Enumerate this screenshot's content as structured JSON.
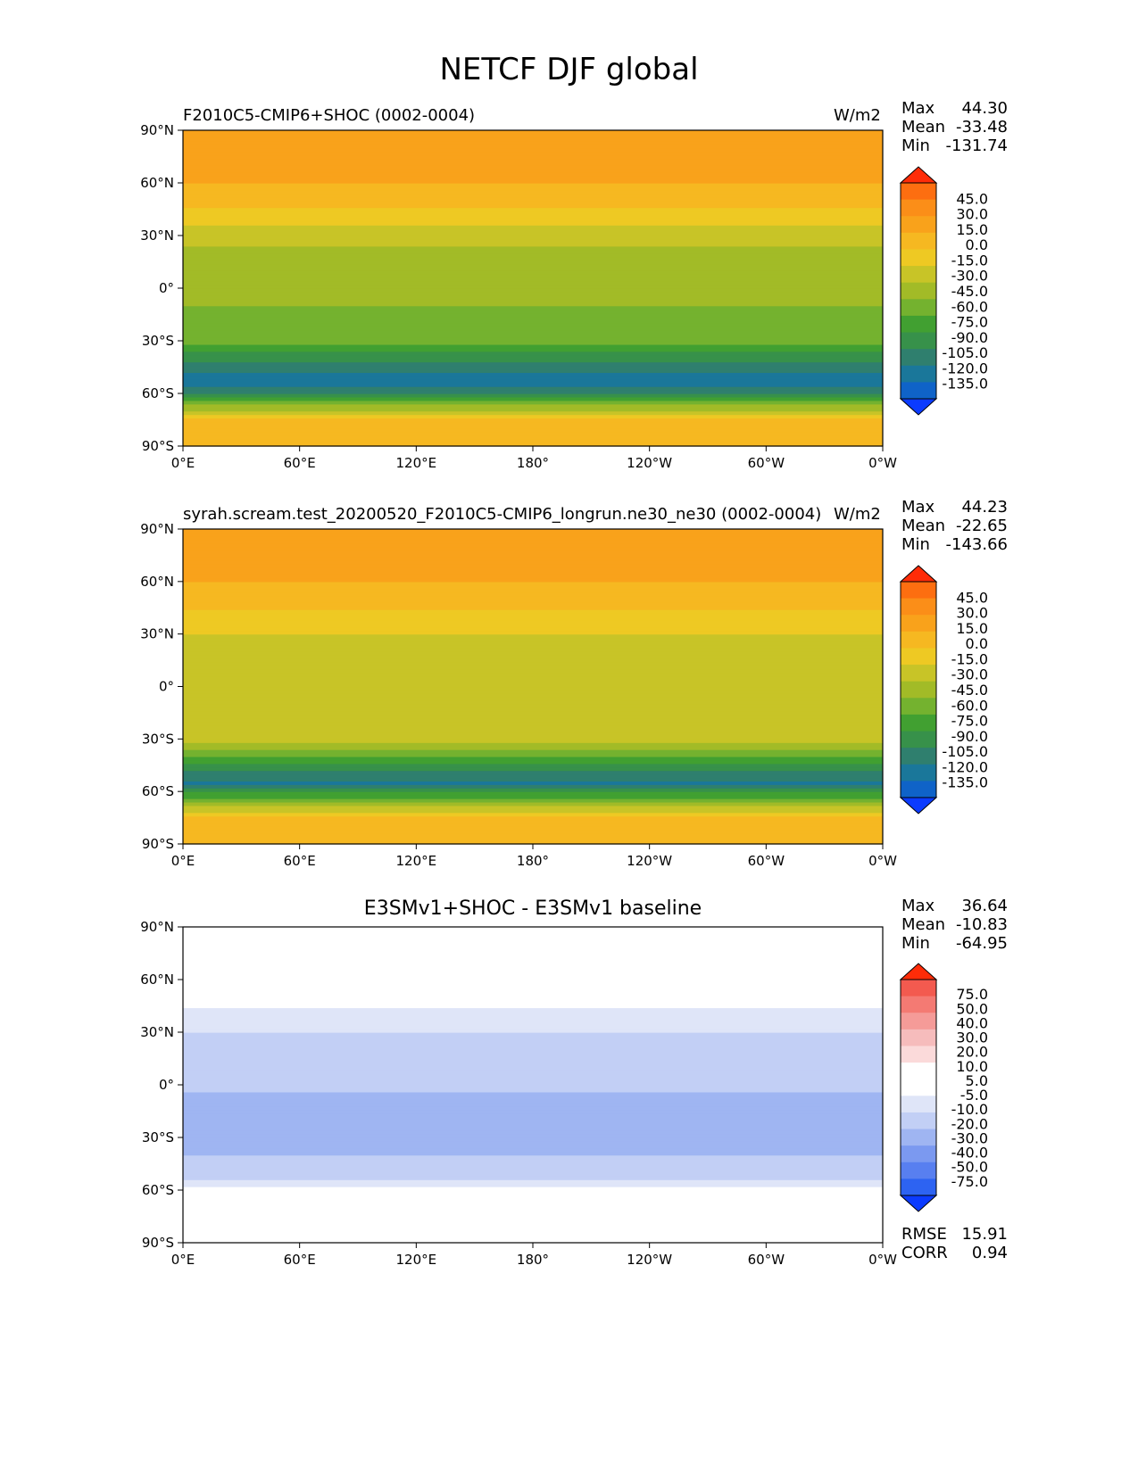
{
  "figure_title": "NETCF DJF global",
  "colors": {
    "diverging": [
      "#0b3bff",
      "#2d63f2",
      "#587ff0",
      "#7b99f0",
      "#9fb5f2",
      "#c2cff5",
      "#dfe5f8",
      "#ffffff",
      "#ffffff",
      "#fbdada",
      "#f6bcbc",
      "#f59b98",
      "#f47a73",
      "#f35a4f",
      "#ff2c08"
    ],
    "sequential": [
      "#0b3bff",
      "#0f63c8",
      "#1a779a",
      "#2f7f6e",
      "#37914a",
      "#41a031",
      "#74b22f",
      "#a2bb27",
      "#c8c427",
      "#eec923",
      "#f6b821",
      "#f9a21b",
      "#fb8e18",
      "#fd6e10",
      "#ff2c08"
    ]
  },
  "chart_data": [
    {
      "type": "heatmap",
      "title": "F2010C5-CMIP6+SHOC (0002-0004)",
      "units": "W/m2",
      "stats": {
        "max": "44.30",
        "mean": "-33.48",
        "min": "-131.74"
      },
      "colorbar_levels": [
        "45.0",
        "30.0",
        "15.0",
        "0.0",
        "-15.0",
        "-30.0",
        "-45.0",
        "-60.0",
        "-75.0",
        "-90.0",
        "-105.0",
        "-120.0",
        "-135.0"
      ],
      "zonal_mean_profile": [
        {
          "lat": -90,
          "value": 10
        },
        {
          "lat": -75,
          "value": 0
        },
        {
          "lat": -66,
          "value": -50
        },
        {
          "lat": -55,
          "value": -115
        },
        {
          "lat": -45,
          "value": -100
        },
        {
          "lat": -30,
          "value": -55
        },
        {
          "lat": -10,
          "value": -45
        },
        {
          "lat": 10,
          "value": -40
        },
        {
          "lat": 30,
          "value": -25
        },
        {
          "lat": 50,
          "value": 5
        },
        {
          "lat": 70,
          "value": 25
        },
        {
          "lat": 90,
          "value": 20
        }
      ]
    },
    {
      "type": "heatmap",
      "title": "syrah.scream.test_20200520_F2010C5-CMIP6_longrun.ne30_ne30 (0002-0004)",
      "units": "W/m2",
      "stats": {
        "max": "44.23",
        "mean": "-22.65",
        "min": "-143.66"
      },
      "colorbar_levels": [
        "45.0",
        "30.0",
        "15.0",
        "0.0",
        "-15.0",
        "-30.0",
        "-45.0",
        "-60.0",
        "-75.0",
        "-90.0",
        "-105.0",
        "-120.0",
        "-135.0"
      ],
      "zonal_mean_profile": [
        {
          "lat": -90,
          "value": 10
        },
        {
          "lat": -75,
          "value": 0
        },
        {
          "lat": -66,
          "value": -45
        },
        {
          "lat": -55,
          "value": -110
        },
        {
          "lat": -45,
          "value": -80
        },
        {
          "lat": -30,
          "value": -25
        },
        {
          "lat": -10,
          "value": -25
        },
        {
          "lat": 10,
          "value": -25
        },
        {
          "lat": 30,
          "value": -15
        },
        {
          "lat": 50,
          "value": 5
        },
        {
          "lat": 70,
          "value": 25
        },
        {
          "lat": 90,
          "value": 20
        }
      ]
    },
    {
      "type": "heatmap",
      "title": "E3SMv1+SHOC - E3SMv1 baseline",
      "stats": {
        "max": "36.64",
        "mean": "-10.83",
        "min": "-64.95"
      },
      "colorbar_levels": [
        "75.0",
        "50.0",
        "40.0",
        "30.0",
        "20.0",
        "10.0",
        "5.0",
        "-5.0",
        "-10.0",
        "-20.0",
        "-30.0",
        "-40.0",
        "-50.0",
        "-75.0"
      ],
      "rmse": "15.91",
      "corr": "0.94",
      "zonal_mean_profile": [
        {
          "lat": -90,
          "value": 0
        },
        {
          "lat": -70,
          "value": 0
        },
        {
          "lat": -60,
          "value": -2
        },
        {
          "lat": -50,
          "value": -15
        },
        {
          "lat": -30,
          "value": -25
        },
        {
          "lat": -10,
          "value": -22
        },
        {
          "lat": 10,
          "value": -15
        },
        {
          "lat": 30,
          "value": -10
        },
        {
          "lat": 45,
          "value": -5
        },
        {
          "lat": 60,
          "value": -2
        },
        {
          "lat": 90,
          "value": 0
        }
      ]
    }
  ],
  "axes": {
    "x_ticks": [
      "0°E",
      "60°E",
      "120°E",
      "180°",
      "120°W",
      "60°W",
      "0°W"
    ],
    "y_ticks": [
      "90°S",
      "60°S",
      "30°S",
      "0°",
      "30°N",
      "60°N",
      "90°N"
    ]
  },
  "stat_labels": {
    "max": "Max",
    "mean": "Mean",
    "min": "Min",
    "rmse": "RMSE",
    "corr": "CORR"
  }
}
